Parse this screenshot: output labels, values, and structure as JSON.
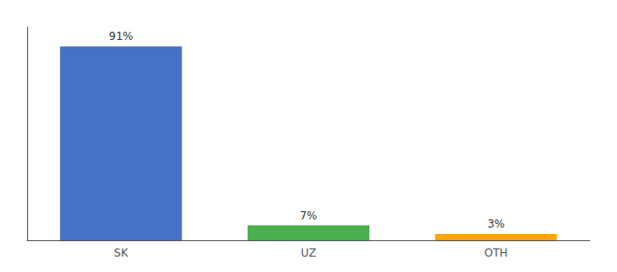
{
  "chart_data": {
    "type": "bar",
    "categories": [
      "SK",
      "UZ",
      "OTH"
    ],
    "values": [
      91,
      7,
      3
    ],
    "value_labels": [
      "91%",
      "7%",
      "3%"
    ],
    "colors": [
      "#4472c4",
      "#4caf50",
      "#ffa500"
    ],
    "ylim": [
      0,
      100
    ],
    "data_labels": true,
    "tick_labels": "x",
    "grid": false
  }
}
